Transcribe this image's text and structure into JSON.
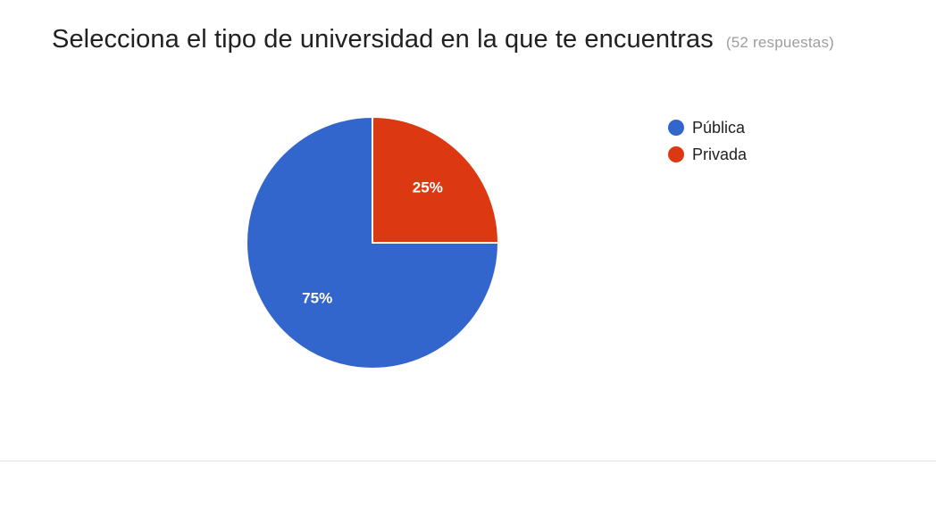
{
  "header": {
    "title": "Selecciona el tipo de universidad en la que te encuentras",
    "responses_count": "52 respuestas"
  },
  "chart_data": {
    "type": "pie",
    "title": "Selecciona el tipo de universidad en la que te encuentras",
    "subtitle": "(52 respuestas)",
    "categories": [
      "Pública",
      "Privada"
    ],
    "values": [
      75,
      25
    ],
    "labels": [
      "75%",
      "25%"
    ],
    "colors": [
      "#3366cc",
      "#dc3912"
    ],
    "legend": "right"
  }
}
